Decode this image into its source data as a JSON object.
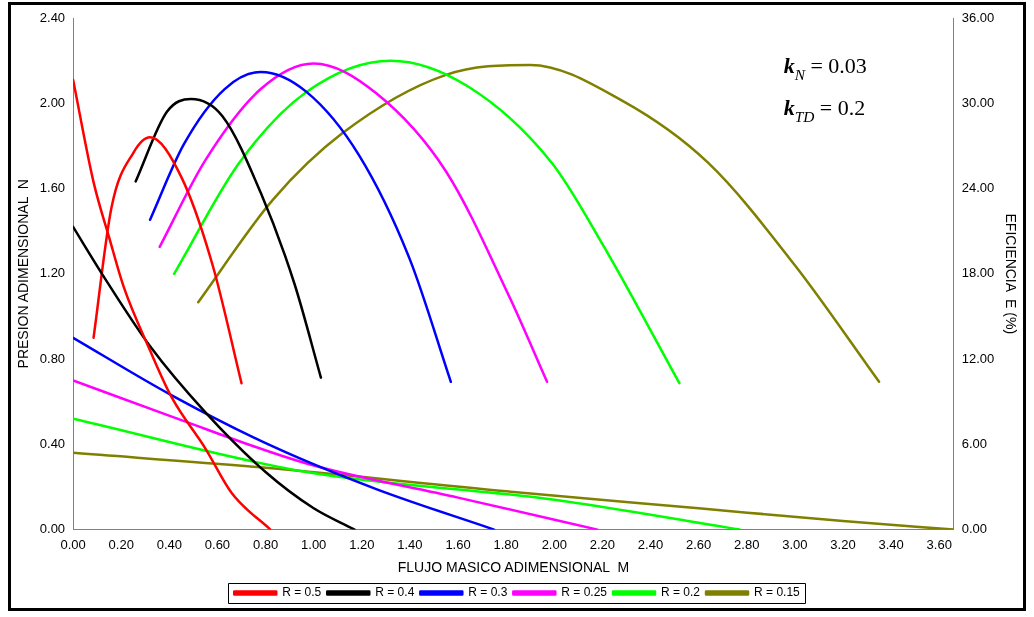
{
  "chart_data": {
    "type": "line",
    "xlabel": "FLUJO MASICO ADIMENSIONAL  M",
    "ylabel": "PRESION ADIMENSIONAL  N",
    "y2label": "EFICIENCIA  E (%)",
    "annotations": [
      "k$_{N}$ = 0.03",
      "k$_{TD}$ = 0.2"
    ],
    "xlim": [
      0,
      3.66
    ],
    "xticks": [
      {
        "value": 0,
        "label": "0.00"
      },
      {
        "value": 0.2,
        "label": "0.20"
      },
      {
        "value": 0.4,
        "label": "0.40"
      },
      {
        "value": 0.6,
        "label": "0.60"
      },
      {
        "value": 0.8,
        "label": "0.80"
      },
      {
        "value": 1,
        "label": "1.00"
      },
      {
        "value": 1.2,
        "label": "1.20"
      },
      {
        "value": 1.4,
        "label": "1.40"
      },
      {
        "value": 1.6,
        "label": "1.60"
      },
      {
        "value": 1.8,
        "label": "1.80"
      },
      {
        "value": 2,
        "label": "2.00"
      },
      {
        "value": 2.2,
        "label": "2.20"
      },
      {
        "value": 2.4,
        "label": "2.40"
      },
      {
        "value": 2.6,
        "label": "2.60"
      },
      {
        "value": 2.8,
        "label": "2.80"
      },
      {
        "value": 3,
        "label": "3.00"
      },
      {
        "value": 3.2,
        "label": "3.20"
      },
      {
        "value": 3.4,
        "label": "3.40"
      },
      {
        "value": 3.6,
        "label": "3.60"
      }
    ],
    "ylim": [
      0,
      2.4
    ],
    "yticks": [
      {
        "value": 0,
        "label": "0.00"
      },
      {
        "value": 0.4,
        "label": "0.40"
      },
      {
        "value": 0.8,
        "label": "0.80"
      },
      {
        "value": 1.2,
        "label": "1.20"
      },
      {
        "value": 1.6,
        "label": "1.60"
      },
      {
        "value": 2,
        "label": "2.00"
      },
      {
        "value": 2.4,
        "label": "2.40"
      }
    ],
    "y2lim": [
      0,
      36
    ],
    "y2ticks": [
      {
        "value": 0,
        "label": "0.00"
      },
      {
        "value": 6,
        "label": "6.00"
      },
      {
        "value": 12,
        "label": "12.00"
      },
      {
        "value": 18,
        "label": "18.00"
      },
      {
        "value": 24,
        "label": "24.00"
      },
      {
        "value": 30,
        "label": "30.00"
      },
      {
        "value": 36,
        "label": "36.00"
      }
    ],
    "grid": false,
    "legend": "bottom",
    "marker": "none",
    "line_style": "solid",
    "series": [
      {
        "name": "R = 0.5",
        "color": "#ff0000",
        "x": [
          0,
          0.085,
          0.15,
          0.21,
          0.32,
          0.41,
          0.55,
          0.66,
          0.82
        ],
        "values": [
          2.11,
          1.63,
          1.37,
          1.14,
          0.84,
          0.62,
          0.38,
          0.17,
          0
        ]
      },
      {
        "name": "R = 0.4",
        "color": "#000000",
        "x": [
          0,
          0.12,
          0.32,
          0.55,
          0.8,
          1,
          1.17
        ],
        "values": [
          1.42,
          1.2,
          0.86,
          0.55,
          0.27,
          0.1,
          0
        ]
      },
      {
        "name": "R = 0.3",
        "color": "#0000ff",
        "x": [
          0,
          0.41,
          0.83,
          1.26,
          1.75
        ],
        "values": [
          0.9,
          0.63,
          0.39,
          0.19,
          0
        ]
      },
      {
        "name": "R = 0.25",
        "color": "#ff00ff",
        "x": [
          0,
          0.41,
          0.97,
          1.6,
          2.18
        ],
        "values": [
          0.7,
          0.53,
          0.31,
          0.15,
          0
        ]
      },
      {
        "name": "R = 0.2",
        "color": "#00ff00",
        "x": [
          0,
          0.97,
          2,
          2.77
        ],
        "values": [
          0.52,
          0.27,
          0.14,
          0
        ]
      },
      {
        "name": "R = 0.15",
        "color": "#808000",
        "x": [
          0,
          0.8,
          1.8,
          2.6,
          3.2,
          3.66
        ],
        "values": [
          0.36,
          0.29,
          0.18,
          0.1,
          0.04,
          0
        ]
      },
      {
        "color": "#ff0000",
        "axis": "y2",
        "x": [
          0.085,
          0.16,
          0.25,
          0.32,
          0.45,
          0.58,
          0.7
        ],
        "values": [
          13.5,
          22.7,
          26.5,
          27.6,
          24.8,
          18.6,
          10.3
        ]
      },
      {
        "color": "#000000",
        "axis": "y2",
        "x": [
          0.26,
          0.39,
          0.49,
          0.62,
          0.78,
          0.92,
          1.03
        ],
        "values": [
          24.5,
          29.4,
          30.3,
          29.1,
          23.7,
          17.3,
          10.7
        ]
      },
      {
        "color": "#0000ff",
        "axis": "y2",
        "x": [
          0.32,
          0.46,
          0.63,
          0.78,
          0.97,
          1.19,
          1.4,
          1.57
        ],
        "values": [
          21.8,
          27.1,
          31,
          32.2,
          30.8,
          26.3,
          19,
          10.4
        ]
      },
      {
        "color": "#ff00ff",
        "axis": "y2",
        "x": [
          0.36,
          0.55,
          0.78,
          1,
          1.26,
          1.55,
          1.81,
          1.97
        ],
        "values": [
          19.9,
          26,
          31,
          32.8,
          30.7,
          25.2,
          16.5,
          10.4
        ]
      },
      {
        "color": "#00ff00",
        "axis": "y2",
        "x": [
          0.42,
          0.69,
          0.97,
          1.32,
          1.64,
          1.99,
          2.21,
          2.52
        ],
        "values": [
          18,
          25.8,
          30.8,
          33,
          31.2,
          25.8,
          19.8,
          10.3
        ]
      },
      {
        "color": "#808000",
        "axis": "y2",
        "x": [
          0.52,
          0.83,
          1.12,
          1.55,
          1.9,
          2.28,
          2.64,
          3,
          3.35
        ],
        "values": [
          16,
          23.2,
          27.9,
          32,
          32.7,
          30.2,
          25.8,
          18.6,
          10.4
        ]
      }
    ]
  }
}
